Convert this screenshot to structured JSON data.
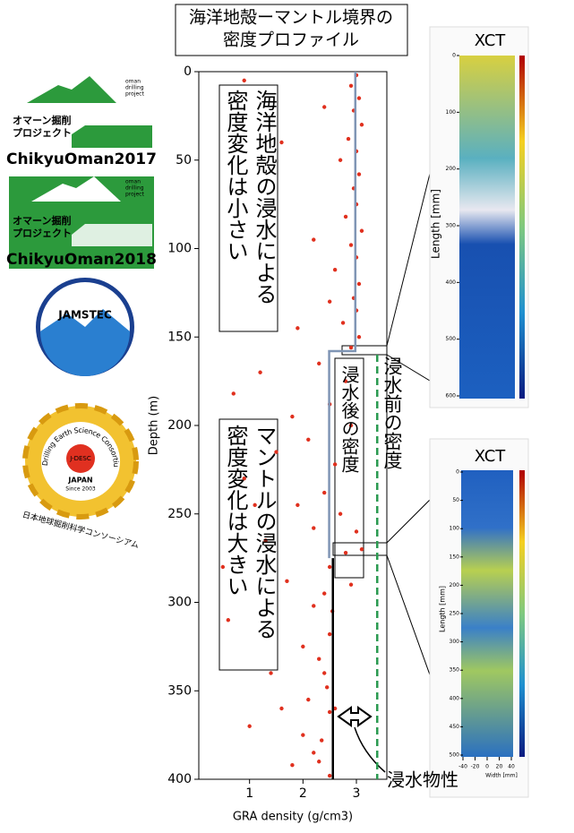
{
  "chart_data": {
    "type": "scatter",
    "title": [
      "海洋地殻ーマントル境界の",
      "密度プロファイル"
    ],
    "x_label": "GRA density (g/cm3)",
    "y_label": "Depth (m)",
    "xlim": [
      0.05,
      3.57
    ],
    "ylim": [
      0,
      400
    ],
    "y_inverted": true,
    "xticks": [
      1,
      2,
      3
    ],
    "yticks": [
      0,
      50,
      100,
      150,
      200,
      250,
      300,
      350,
      400
    ],
    "series": [
      {
        "color": "#e0301e",
        "x": [
          3.0,
          2.9,
          3.05,
          2.95,
          3.1,
          2.85,
          3.0,
          2.7,
          3.05,
          2.95,
          3.0,
          2.8,
          3.1,
          2.9,
          3.0,
          2.6,
          3.05,
          2.95,
          3.0,
          2.75,
          3.05,
          2.9,
          0.9,
          1.6,
          2.2,
          1.9,
          2.4,
          2.5,
          2.3,
          1.2,
          2.8,
          0.7,
          2.5,
          1.8,
          2.9,
          2.1,
          1.5,
          2.6,
          0.9,
          2.4,
          1.9,
          2.7,
          2.2,
          1.3,
          2.8,
          2.5,
          1.7,
          2.4,
          2.2,
          0.6,
          2.5,
          2.0,
          2.3,
          1.4,
          2.45,
          2.1,
          2.5,
          1.0,
          2.35,
          2.2,
          1.8,
          2.5,
          2.55,
          2.4,
          2.6,
          2.3,
          3.0,
          3.1,
          2.9,
          1.1,
          0.5,
          1.6,
          2.0
        ],
        "values": [
          2,
          8,
          15,
          22,
          30,
          38,
          45,
          50,
          58,
          66,
          75,
          82,
          90,
          98,
          105,
          112,
          120,
          128,
          135,
          142,
          150,
          156,
          5,
          40,
          95,
          145,
          20,
          130,
          165,
          170,
          175,
          182,
          188,
          195,
          200,
          208,
          215,
          222,
          230,
          238,
          245,
          250,
          258,
          265,
          272,
          280,
          288,
          295,
          302,
          310,
          318,
          325,
          332,
          340,
          348,
          355,
          362,
          370,
          378,
          385,
          392,
          398,
          305,
          340,
          360,
          390,
          260,
          270,
          290,
          245,
          280,
          360,
          375
        ]
      }
    ],
    "lines": [
      {
        "color": "#7f95b5",
        "dashed": false,
        "x": [
          2.98,
          2.98,
          2.49,
          2.49
        ],
        "values": [
          0,
          158,
          158,
          275
        ]
      },
      {
        "color": "#000000",
        "dashed": false,
        "x": [
          2.56,
          2.56
        ],
        "values": [
          275,
          400
        ]
      },
      {
        "color": "#2a9a50",
        "dashed": true,
        "x": [
          3.39,
          3.39
        ],
        "values": [
          160,
          400
        ]
      }
    ],
    "annotations": {
      "crust": [
        "海洋地殻の浸水による",
        "密度変化は小さい"
      ],
      "mantle": [
        "マントルの浸水による",
        "密度変化は大きい"
      ],
      "after": "浸水後の密度",
      "before": "浸水前の密度",
      "property": "浸水物性"
    }
  },
  "xct": [
    {
      "title": "XCT",
      "y_label": "Length [mm]",
      "yticks": [
        0,
        100,
        200,
        300,
        400,
        500,
        600
      ]
    },
    {
      "title": "XCT",
      "y_label": "Length [mm]",
      "yticks": [
        0,
        50,
        100,
        150,
        200,
        250,
        300,
        350,
        400,
        450,
        500
      ],
      "xticks": [
        -40,
        -20,
        0,
        20,
        40
      ],
      "x_label": "Width [mm]"
    }
  ],
  "logos": {
    "oman": [
      {
        "small": [
          "oman",
          "drilling",
          "project"
        ],
        "jp": [
          "オマーン掘削",
          "プロジェクト"
        ],
        "name": "ChikyuOman2017"
      },
      {
        "small": [
          "oman",
          "drilling",
          "project"
        ],
        "jp": [
          "オマーン掘削",
          "プロジェクト"
        ],
        "name": "ChikyuOman2018"
      }
    ],
    "jamstec": "JAMSTEC",
    "jdesc": {
      "ring": "Drilling Earth Science Consortium",
      "name": "J-DESC",
      "country": "JAPAN",
      "since": "Since 2003",
      "jp": "日本地球掘削科学コンソーシアム"
    }
  }
}
